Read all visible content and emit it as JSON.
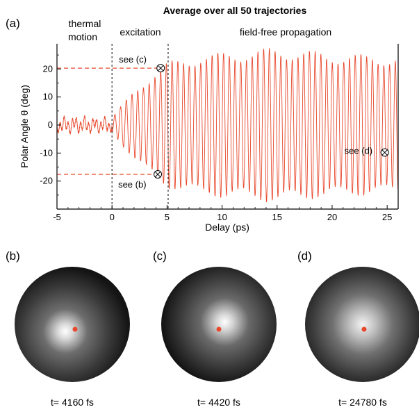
{
  "figure": {
    "panel_a": "(a)",
    "panel_b": "(b)",
    "panel_c": "(c)",
    "panel_d": "(d)"
  },
  "chart_data": {
    "type": "line",
    "title": "Average over all 50 trajectories",
    "xlabel": "Delay (ps)",
    "ylabel": "Polar Angle θ (deg)",
    "xlim": [
      -5,
      26
    ],
    "ylim": [
      -30,
      29
    ],
    "xticks": [
      -5,
      0,
      5,
      10,
      15,
      20,
      25
    ],
    "yticks": [
      -20,
      -10,
      0,
      10,
      20
    ],
    "grid": false,
    "line_color": "#e8482c",
    "regions": [
      {
        "label_line1": "thermal",
        "label_line2": "motion",
        "x_start": -5,
        "x_end": 0
      },
      {
        "label_line1": "excitation",
        "label_line2": "",
        "x_start": 0,
        "x_end": 5.1
      },
      {
        "label_line1": "field-free propagation",
        "label_line2": "",
        "x_start": 5.1,
        "x_end": 26
      }
    ],
    "vertical_dashed_lines": [
      0,
      5.1
    ],
    "horizontal_reference_lines": [
      20.3,
      -17.6
    ],
    "annotations": [
      {
        "text": "see (c)",
        "x": 4.42,
        "y": 20.3
      },
      {
        "text": "see (b)",
        "x": 4.16,
        "y": -17.6
      },
      {
        "text": "see (d)",
        "x": 24.78,
        "y": -9.8
      }
    ],
    "series": [
      {
        "description_of_envelope": "thermal noise ~±2.5 deg for t<0, growing oscillation amplitude during excitation, sustained ~±25 deg oscillation afterwards",
        "period_ps": 0.52,
        "envelope_points": [
          {
            "x": -5,
            "amp": 2.5
          },
          {
            "x": 0,
            "amp": 2.5
          },
          {
            "x": 0.5,
            "amp": 5
          },
          {
            "x": 2,
            "amp": 12
          },
          {
            "x": 4,
            "amp": 19
          },
          {
            "x": 5.1,
            "amp": 22
          },
          {
            "x": 8,
            "amp": 24.5
          },
          {
            "x": 15,
            "amp": 27
          },
          {
            "x": 20,
            "amp": 25
          },
          {
            "x": 26,
            "amp": 24
          }
        ]
      }
    ]
  },
  "snapshots": [
    {
      "label": "(b)",
      "caption": "t= 4160 fs",
      "dot_color": "#e8482c"
    },
    {
      "label": "(c)",
      "caption": "t= 4420 fs",
      "dot_color": "#e8482c"
    },
    {
      "label": "(d)",
      "caption": "t= 24780 fs",
      "dot_color": "#e8482c"
    }
  ]
}
